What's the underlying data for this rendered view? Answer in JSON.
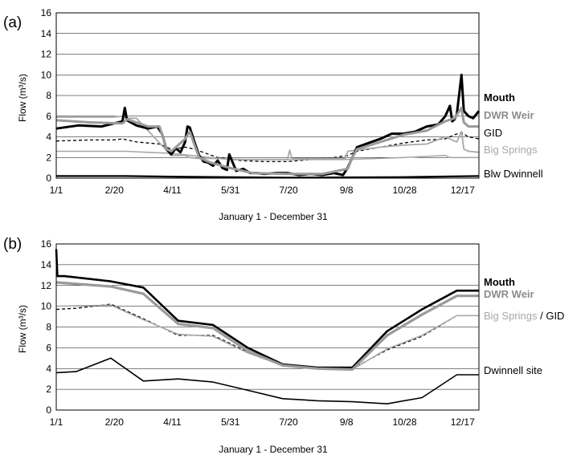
{
  "chart_data": [
    {
      "panel": "(a)",
      "type": "line",
      "xlabel": "January 1 - December 31",
      "ylabel": "Flow (m³/s)",
      "ylim": [
        0,
        16
      ],
      "yticks": [
        "0",
        "2",
        "4",
        "6",
        "8",
        "10",
        "12",
        "14",
        "16"
      ],
      "xlim": [
        1,
        365
      ],
      "xticks": [
        {
          "day": 1,
          "label": "1/1"
        },
        {
          "day": 51,
          "label": "2/20"
        },
        {
          "day": 101,
          "label": "4/11"
        },
        {
          "day": 151,
          "label": "5/31"
        },
        {
          "day": 201,
          "label": "7/20"
        },
        {
          "day": 251,
          "label": "9/8"
        },
        {
          "day": 301,
          "label": "10/28"
        },
        {
          "day": 351,
          "label": "12/17"
        }
      ],
      "grid": true,
      "series": [
        {
          "name": "Mouth",
          "color": "#000000",
          "width": 3,
          "dash": "",
          "x": [
            1,
            20,
            40,
            58,
            60,
            62,
            70,
            80,
            88,
            92,
            96,
            100,
            104,
            108,
            112,
            114,
            116,
            120,
            124,
            128,
            132,
            136,
            140,
            144,
            148,
            150,
            156,
            162,
            168,
            174,
            180,
            190,
            200,
            210,
            220,
            230,
            240,
            248,
            252,
            256,
            260,
            270,
            280,
            290,
            300,
            310,
            320,
            330,
            336,
            340,
            342,
            344,
            346,
            350,
            352,
            356,
            360,
            365
          ],
          "y": [
            4.8,
            5.1,
            5.0,
            5.5,
            6.8,
            5.6,
            5.1,
            4.8,
            5.0,
            4.3,
            2.8,
            2.3,
            2.9,
            2.5,
            3.5,
            5.0,
            4.9,
            3.5,
            2.2,
            1.6,
            1.5,
            1.2,
            1.7,
            1.0,
            0.8,
            2.3,
            0.7,
            0.9,
            0.5,
            0.5,
            0.4,
            0.5,
            0.5,
            0.3,
            0.4,
            0.3,
            0.5,
            0.3,
            1.0,
            2.0,
            3.0,
            3.4,
            3.8,
            4.3,
            4.3,
            4.5,
            5.0,
            5.2,
            6.0,
            7.0,
            5.5,
            5.7,
            6.2,
            10.0,
            6.5,
            6.0,
            5.8,
            6.5
          ]
        },
        {
          "name": "DWR Weir",
          "color": "#9a9a9a",
          "width": 3,
          "dash": "",
          "x": [
            1,
            30,
            58,
            62,
            80,
            90,
            96,
            100,
            112,
            116,
            124,
            134,
            150,
            170,
            200,
            230,
            252,
            256,
            260,
            280,
            300,
            320,
            336,
            344,
            350,
            352,
            356,
            365
          ],
          "y": [
            5.6,
            5.4,
            5.3,
            5.7,
            5.0,
            5.0,
            2.8,
            2.6,
            3.8,
            4.5,
            2.0,
            1.5,
            1.0,
            0.5,
            0.4,
            0.4,
            0.9,
            2.0,
            2.8,
            3.5,
            4.2,
            4.6,
            5.5,
            5.8,
            6.8,
            5.4,
            5.0,
            5.0
          ]
        },
        {
          "name": "GID",
          "color": "#000000",
          "width": 1.3,
          "dash": "4,3",
          "x": [
            1,
            30,
            50,
            58,
            70,
            90,
            100,
            112,
            120,
            140,
            160,
            180,
            200,
            220,
            240,
            252,
            260,
            280,
            300,
            320,
            336,
            344,
            350,
            356,
            365
          ],
          "y": [
            3.6,
            3.7,
            3.7,
            3.8,
            3.5,
            3.3,
            2.8,
            3.0,
            2.8,
            2.0,
            1.7,
            1.6,
            1.6,
            1.8,
            2.0,
            2.2,
            2.6,
            3.0,
            3.4,
            3.7,
            3.8,
            4.2,
            4.4,
            4.0,
            3.8
          ]
        },
        {
          "name": "Big Springs",
          "color": "#a8a8a8",
          "width": 1.8,
          "dash": "",
          "x": [
            1,
            50,
            58,
            62,
            70,
            100,
            112,
            116,
            124,
            140,
            160,
            200,
            202,
            204,
            250,
            252,
            280,
            300,
            320,
            336,
            346,
            350,
            352,
            356,
            365
          ],
          "y": [
            5.9,
            5.9,
            6.0,
            5.8,
            5.8,
            2.2,
            2.2,
            2.0,
            1.9,
            1.9,
            1.8,
            1.8,
            2.7,
            1.9,
            1.9,
            2.6,
            3.0,
            3.2,
            3.3,
            4.0,
            3.5,
            4.5,
            2.8,
            2.6,
            2.5
          ]
        },
        {
          "name": "Blw Dwinnell",
          "color": "#000000",
          "width": 2.2,
          "dash": "",
          "x": [
            1,
            60,
            100,
            200,
            300,
            365
          ],
          "y": [
            0.2,
            0.2,
            0.15,
            0.05,
            0.1,
            0.2
          ]
        },
        {
          "name": "",
          "color": "#a8a8a8",
          "width": 1.6,
          "dash": "",
          "x": [
            1,
            60,
            80,
            100,
            150,
            250,
            300,
            336,
            340,
            365
          ],
          "y": [
            2.6,
            2.6,
            2.5,
            2.4,
            1.8,
            1.8,
            2.0,
            2.2,
            2.0,
            2.0
          ]
        }
      ],
      "legend": [
        {
          "label": "Mouth",
          "color": "#000000",
          "bold": true
        },
        {
          "label": "DWR Weir",
          "color": "#8c8c8c",
          "bold": true
        },
        {
          "label": "GID",
          "color": "#000000",
          "bold": false
        },
        {
          "label": "Big Springs",
          "color": "#a8a8a8",
          "bold": false
        },
        {
          "label": "Blw Dwinnell",
          "color": "#000000",
          "bold": false
        }
      ]
    },
    {
      "panel": "(b)",
      "type": "line",
      "xlabel": "January 1 - December 31",
      "ylabel": "Flow (m³/s)",
      "ylim": [
        0,
        16
      ],
      "yticks": [
        "0",
        "2",
        "4",
        "6",
        "8",
        "10",
        "12",
        "14",
        "16"
      ],
      "xlim": [
        1,
        365
      ],
      "xticks": [
        {
          "day": 1,
          "label": "1/1"
        },
        {
          "day": 51,
          "label": "2/20"
        },
        {
          "day": 101,
          "label": "4/11"
        },
        {
          "day": 151,
          "label": "5/31"
        },
        {
          "day": 201,
          "label": "7/20"
        },
        {
          "day": 251,
          "label": "9/8"
        },
        {
          "day": 301,
          "label": "10/28"
        },
        {
          "day": 351,
          "label": "12/17"
        }
      ],
      "grid": true,
      "series": [
        {
          "name": "Mouth",
          "color": "#000000",
          "width": 2.6,
          "dash": "",
          "x": [
            1,
            2,
            8,
            48,
            76,
            106,
            136,
            166,
            196,
            226,
            256,
            286,
            316,
            346,
            365
          ],
          "y": [
            15.5,
            12.9,
            12.9,
            12.4,
            11.8,
            8.6,
            8.2,
            6.0,
            4.4,
            4.1,
            4.1,
            7.6,
            9.7,
            11.5,
            11.5
          ]
        },
        {
          "name": "DWR Weir",
          "color": "#9a9a9a",
          "width": 3.2,
          "dash": "",
          "x": [
            1,
            48,
            76,
            106,
            136,
            166,
            196,
            226,
            256,
            286,
            316,
            346,
            365
          ],
          "y": [
            12.3,
            11.9,
            11.2,
            8.3,
            7.9,
            5.7,
            4.3,
            4.0,
            3.9,
            7.2,
            9.2,
            11.0,
            11.0
          ]
        },
        {
          "name": "GID",
          "color": "#000000",
          "width": 1.3,
          "dash": "4,3",
          "x": [
            1,
            18,
            48,
            76,
            106,
            136,
            166,
            196,
            226,
            256,
            286,
            316,
            346,
            365
          ],
          "y": [
            9.7,
            9.8,
            10.2,
            8.8,
            7.2,
            7.2,
            5.6,
            4.4,
            4.1,
            4.0,
            5.8,
            7.1,
            9.1,
            9.1
          ]
        },
        {
          "name": "Big Springs",
          "color": "#a8a8a8",
          "width": 1.6,
          "dash": "",
          "x": [
            1,
            48,
            76,
            106,
            136,
            166,
            196,
            226,
            256,
            286,
            316,
            346,
            365
          ],
          "y": [
            10.0,
            10.1,
            8.7,
            7.3,
            7.1,
            5.5,
            4.3,
            4.0,
            3.9,
            5.9,
            7.2,
            9.1,
            9.1
          ]
        },
        {
          "name": "Dwinnell site",
          "color": "#000000",
          "width": 1.6,
          "dash": "",
          "x": [
            1,
            18,
            48,
            76,
            106,
            136,
            166,
            196,
            226,
            256,
            286,
            316,
            346,
            365
          ],
          "y": [
            3.6,
            3.7,
            5.0,
            2.8,
            3.0,
            2.7,
            1.9,
            1.1,
            0.9,
            0.8,
            0.6,
            1.2,
            3.4,
            3.4
          ]
        }
      ],
      "legend": [
        {
          "label": "Mouth",
          "color": "#000000",
          "bold": true
        },
        {
          "label": "DWR Weir",
          "color": "#8c8c8c",
          "bold": true
        },
        {
          "parts": [
            {
              "text": "Big Springs",
              "color": "#a8a8a8"
            },
            {
              "text": " / ",
              "color": "#000000"
            },
            {
              "text": "GID",
              "color": "#000000"
            }
          ]
        },
        {
          "label": "Dwinnell site",
          "color": "#000000",
          "bold": false
        }
      ]
    }
  ]
}
